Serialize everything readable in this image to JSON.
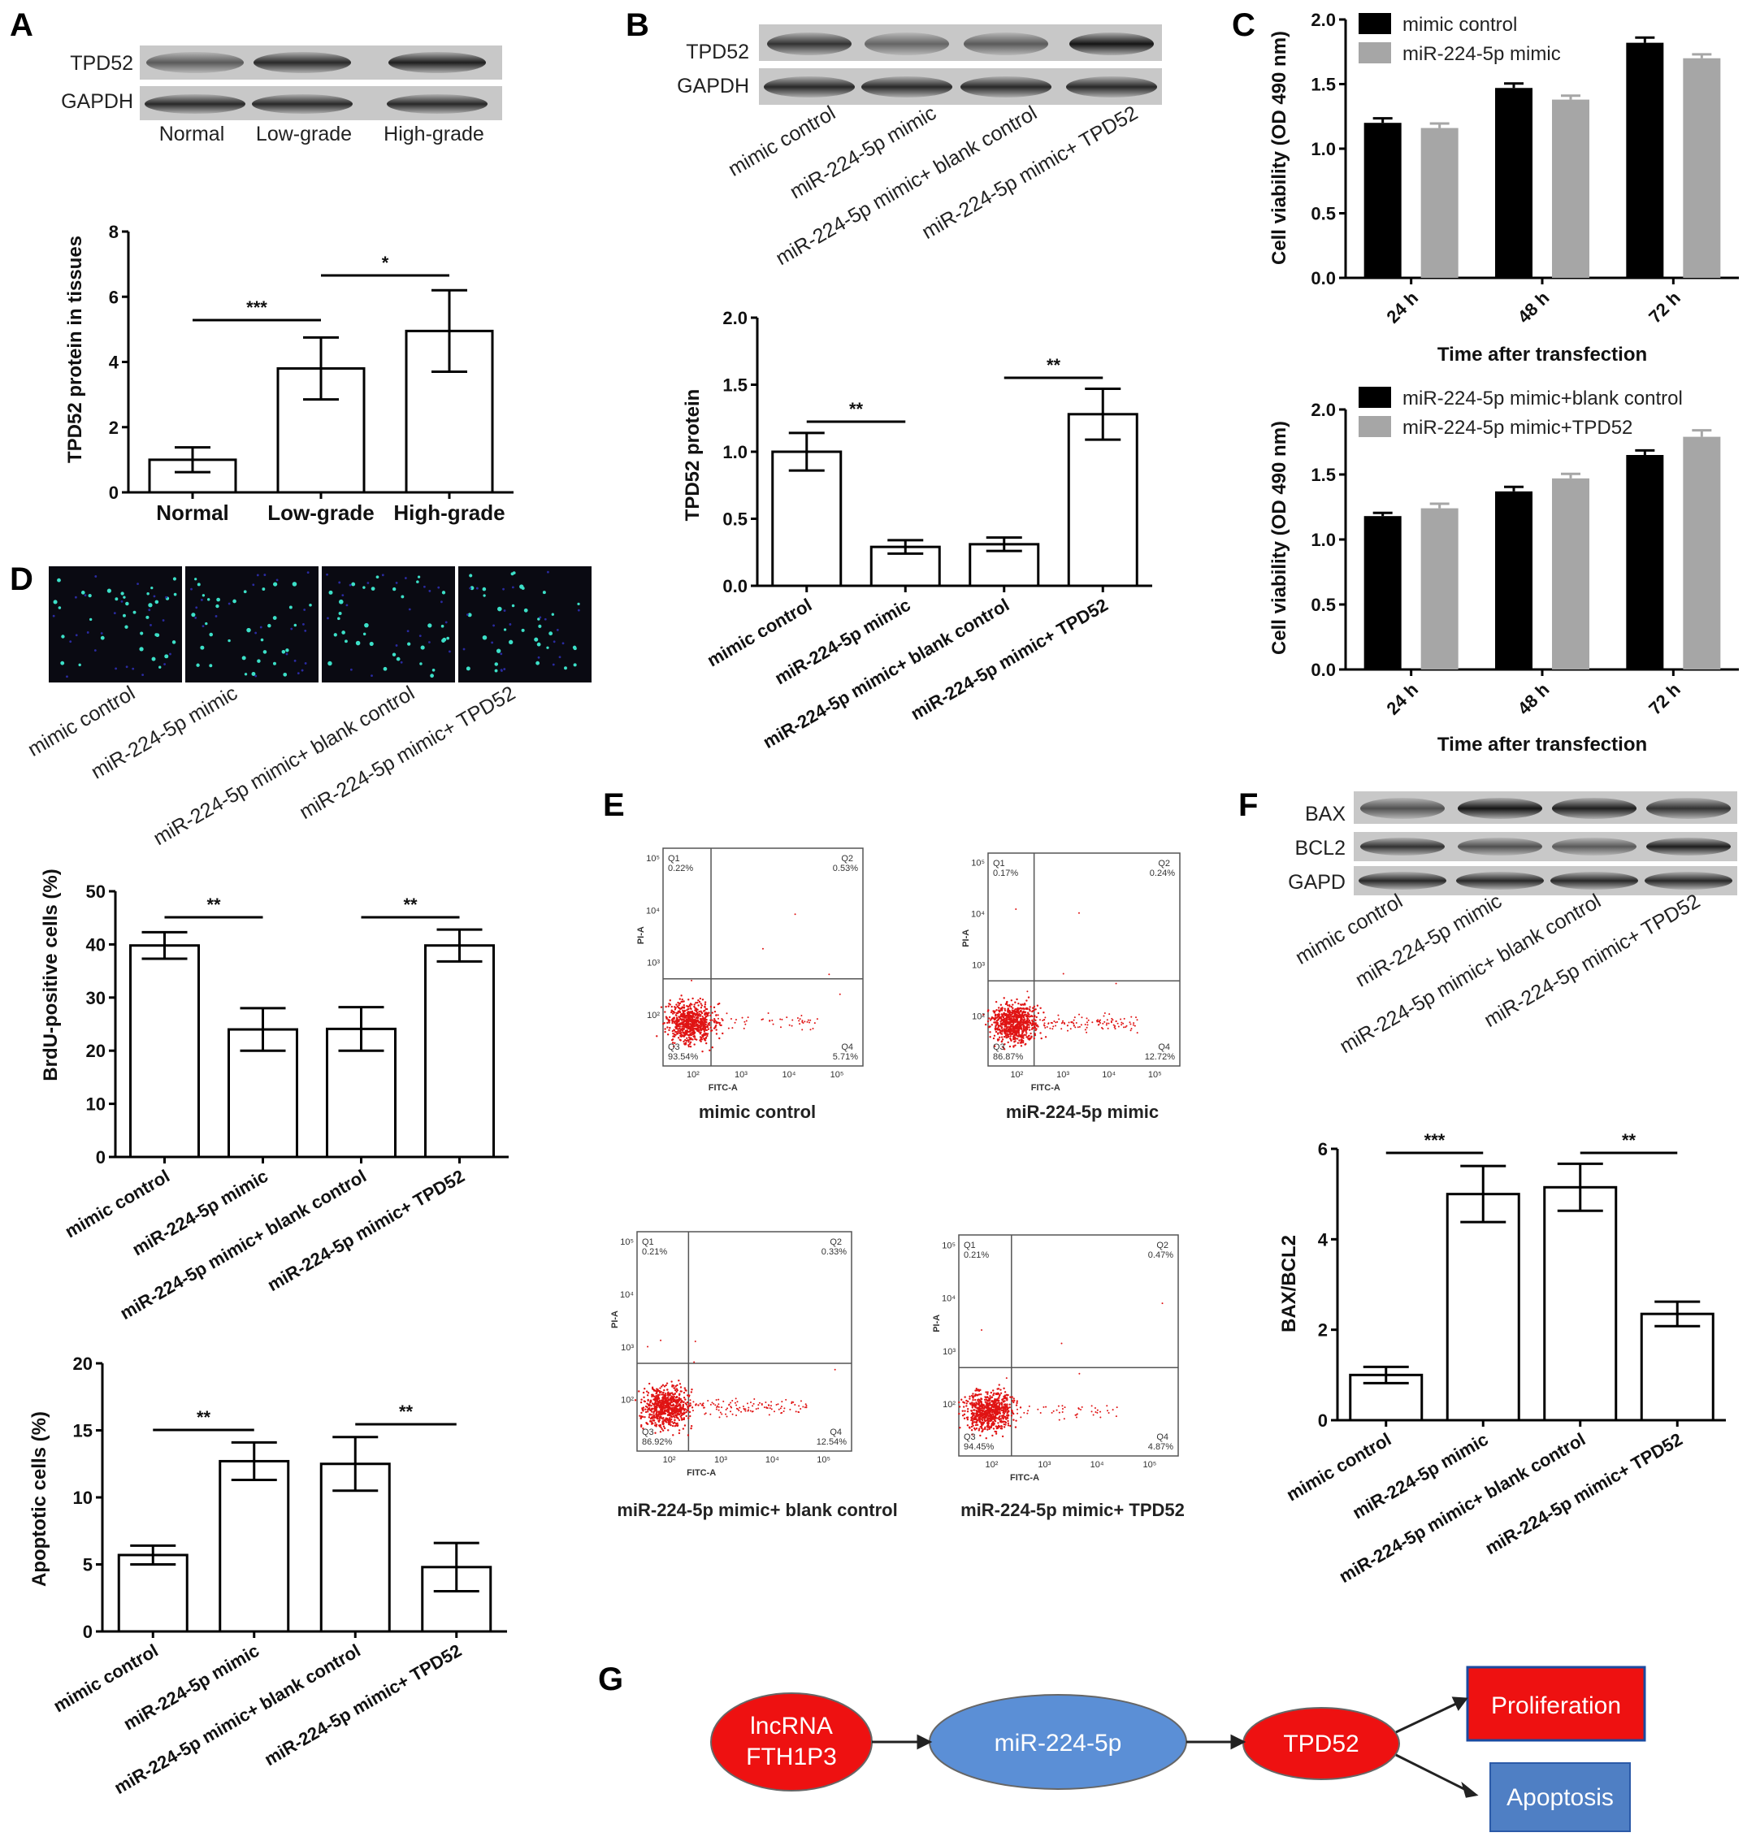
{
  "panels": {
    "A": {
      "letter": "A",
      "blot": {
        "proteins": [
          "TPD52",
          "GAPDH"
        ],
        "lanes": [
          "Normal",
          "Low-grade",
          "High-grade"
        ],
        "band_intensity": {
          "TPD52": [
            0.55,
            0.8,
            0.85
          ],
          "GAPDH": [
            0.8,
            0.8,
            0.8
          ]
        }
      },
      "chart_data": {
        "type": "bar",
        "ylabel": "TPD52 protein in tissues",
        "xlabel": "",
        "categories": [
          "Normal",
          "Low-grade",
          "High-grade"
        ],
        "values": [
          1.0,
          3.8,
          4.95
        ],
        "errors": [
          0.38,
          0.95,
          1.25
        ],
        "ylim": [
          0,
          8
        ],
        "yticks": [
          "0",
          "2",
          "4",
          "6",
          "8"
        ],
        "significance": [
          {
            "from": 0,
            "to": 1,
            "label": "***"
          },
          {
            "from": 1,
            "to": 2,
            "label": "*"
          }
        ]
      }
    },
    "B": {
      "letter": "B",
      "blot": {
        "proteins": [
          "TPD52",
          "GAPDH"
        ],
        "lanes": [
          "mimic control",
          "miR-224-5p mimic",
          "miR-224-5p mimic+ blank control",
          "miR-224-5p mimic+ TPD52"
        ],
        "band_intensity": {
          "TPD52": [
            0.75,
            0.5,
            0.55,
            0.9
          ],
          "GAPDH": [
            0.8,
            0.8,
            0.8,
            0.8
          ]
        }
      },
      "chart_data": {
        "type": "bar",
        "ylabel": "TPD52 protein",
        "xlabel": "",
        "categories": [
          "mimic control",
          "miR-224-5p mimic",
          "miR-224-5p mimic+ blank control",
          "miR-224-5p mimic+ TPD52"
        ],
        "values": [
          1.0,
          0.29,
          0.31,
          1.28
        ],
        "errors": [
          0.14,
          0.05,
          0.05,
          0.19
        ],
        "ylim": [
          0,
          2
        ],
        "yticks": [
          "0.0",
          "0.5",
          "1.0",
          "1.5",
          "2.0"
        ],
        "significance": [
          {
            "from": 0,
            "to": 1,
            "label": "**"
          },
          {
            "from": 2,
            "to": 3,
            "label": "**"
          }
        ]
      }
    },
    "C": {
      "letter": "C",
      "chart_data": [
        {
          "type": "bar",
          "ylabel": "Cell viability (OD 490 nm)",
          "xlabel": "Time after transfection",
          "categories": [
            "24 h",
            "48 h",
            "72 h"
          ],
          "series": [
            {
              "name": "mimic control",
              "color": "#000000",
              "values": [
                1.2,
                1.47,
                1.82
              ],
              "errors": [
                0.035,
                0.035,
                0.04
              ]
            },
            {
              "name": "miR-224-5p mimic",
              "color": "#a6a6a6",
              "values": [
                1.16,
                1.38,
                1.7
              ],
              "errors": [
                0.035,
                0.03,
                0.03
              ]
            }
          ],
          "ylim": [
            0,
            2
          ],
          "yticks": [
            "0.0",
            "0.5",
            "1.0",
            "1.5",
            "2.0"
          ],
          "legend": "top-left"
        },
        {
          "type": "bar",
          "ylabel": "Cell viability (OD 490 nm)",
          "xlabel": "Time after transfection",
          "categories": [
            "24 h",
            "48 h",
            "72 h"
          ],
          "series": [
            {
              "name": "miR-224-5p mimic+blank control",
              "color": "#000000",
              "values": [
                1.18,
                1.37,
                1.65
              ],
              "errors": [
                0.025,
                0.035,
                0.035
              ]
            },
            {
              "name": "miR-224-5p mimic+TPD52",
              "color": "#a6a6a6",
              "values": [
                1.24,
                1.47,
                1.79
              ],
              "errors": [
                0.035,
                0.035,
                0.05
              ]
            }
          ],
          "ylim": [
            0,
            2
          ],
          "yticks": [
            "0.0",
            "0.5",
            "1.0",
            "1.5",
            "2.0"
          ],
          "legend": "top-left"
        }
      ]
    },
    "D": {
      "letter": "D",
      "images": [
        "mimic control",
        "miR-224-5p mimic",
        "miR-224-5p mimic+ blank control",
        "miR-224-5p mimic+ TPD52"
      ],
      "chart_data": [
        {
          "type": "bar",
          "ylabel": "BrdU-positive cells (%)",
          "xlabel": "",
          "categories": [
            "mimic control",
            "miR-224-5p mimic",
            "miR-224-5p mimic+ blank control",
            "miR-224-5p mimic+ TPD52"
          ],
          "values": [
            39.8,
            24.0,
            24.1,
            39.8
          ],
          "errors": [
            2.5,
            4.0,
            4.1,
            3.0
          ],
          "ylim": [
            0,
            50
          ],
          "yticks": [
            "0",
            "10",
            "20",
            "30",
            "40",
            "50"
          ],
          "significance": [
            {
              "from": 0,
              "to": 1,
              "label": "**"
            },
            {
              "from": 2,
              "to": 3,
              "label": "**"
            }
          ]
        },
        {
          "type": "bar",
          "ylabel": "Apoptotic cells (%)",
          "xlabel": "",
          "categories": [
            "mimic control",
            "miR-224-5p mimic",
            "miR-224-5p mimic+ blank control",
            "miR-224-5p mimic+ TPD52"
          ],
          "values": [
            5.7,
            12.7,
            12.5,
            4.8
          ],
          "errors": [
            0.7,
            1.4,
            2.0,
            1.8
          ],
          "ylim": [
            0,
            20
          ],
          "yticks": [
            "0",
            "5",
            "10",
            "15",
            "20"
          ],
          "significance": [
            {
              "from": 0,
              "to": 1,
              "label": "**"
            },
            {
              "from": 2,
              "to": 3,
              "label": "**"
            }
          ]
        }
      ]
    },
    "E": {
      "letter": "E",
      "xaxis": "FITC-A",
      "yaxis": "PI-A",
      "decades": [
        "10²",
        "10³",
        "10⁴",
        "10⁵"
      ],
      "plots": [
        {
          "caption": "mimic control",
          "q1": "0.22%",
          "q2": "0.53%",
          "q3": "93.54%",
          "q4": "5.71%",
          "tail": 0.06
        },
        {
          "caption": "miR-224-5p mimic",
          "q1": "0.17%",
          "q2": "0.24%",
          "q3": "86.87%",
          "q4": "12.72%",
          "tail": 0.13
        },
        {
          "caption": "miR-224-5p mimic+ blank control",
          "q1": "0.21%",
          "q2": "0.33%",
          "q3": "86.92%",
          "q4": "12.54%",
          "tail": 0.13
        },
        {
          "caption": "miR-224-5p mimic+ TPD52",
          "q1": "0.21%",
          "q2": "0.47%",
          "q3": "94.45%",
          "q4": "4.87%",
          "tail": 0.05
        }
      ]
    },
    "F": {
      "letter": "F",
      "blot": {
        "proteins": [
          "BAX",
          "BCL2",
          "GAPD"
        ],
        "lanes": [
          "mimic control",
          "miR-224-5p mimic",
          "miR-224-5p mimic+ blank control",
          "miR-224-5p mimic+ TPD52"
        ],
        "band_intensity": {
          "BAX": [
            0.6,
            0.9,
            0.85,
            0.75
          ],
          "BCL2": [
            0.75,
            0.6,
            0.55,
            0.85
          ],
          "GAPD": [
            0.8,
            0.8,
            0.8,
            0.8
          ]
        }
      },
      "chart_data": {
        "type": "bar",
        "ylabel": "BAX/BCL2",
        "xlabel": "",
        "categories": [
          "mimic control",
          "miR-224-5p mimic",
          "miR-224-5p mimic+ blank control",
          "miR-224-5p mimic+ TPD52"
        ],
        "values": [
          1.0,
          5.0,
          5.15,
          2.35
        ],
        "errors": [
          0.18,
          0.62,
          0.52,
          0.27
        ],
        "ylim": [
          0,
          6
        ],
        "yticks": [
          "0",
          "2",
          "4",
          "6"
        ],
        "significance": [
          {
            "from": 0,
            "to": 1,
            "label": "***"
          },
          {
            "from": 2,
            "to": 3,
            "label": "**"
          }
        ]
      }
    },
    "G": {
      "letter": "G",
      "nodes": {
        "lnc": {
          "line1": "lncRNA",
          "line2": "FTH1P3",
          "fill": "#ee1111"
        },
        "mir": {
          "label": "miR-224-5p",
          "fill": "#5b8fd6"
        },
        "tpd": {
          "label": "TPD52",
          "fill": "#ee1111"
        },
        "prolif": {
          "label": "Proliferation",
          "fill": "#ee1111"
        },
        "apop": {
          "label": "Apoptosis",
          "fill": "#4f7fc4"
        }
      }
    }
  }
}
